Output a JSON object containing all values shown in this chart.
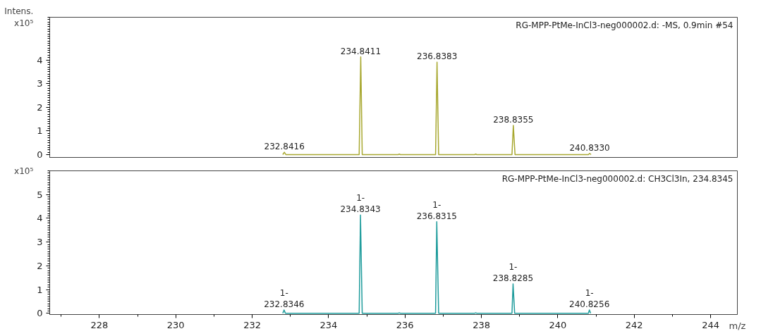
{
  "chart_data": [
    {
      "type": "line",
      "title": "RG-MPP-PtMe-InCl3-neg000002.d: -MS, 0.9min #54",
      "ylabel": "Intens. x10⁵",
      "xlim": [
        226.7,
        244.7
      ],
      "ylim": [
        -0.15,
        5.8
      ],
      "yticks": [
        0,
        1,
        2,
        3,
        4
      ],
      "xticks": [
        228,
        230,
        232,
        234,
        236,
        238,
        240,
        242,
        244
      ],
      "tick_labels": "y",
      "grid": false,
      "marker": "none",
      "line_style": "solid",
      "series": [
        {
          "color": "#a8a830",
          "x": [
            232.8,
            232.8416,
            232.88,
            234.8,
            234.8411,
            234.88,
            235.82,
            235.85,
            235.88,
            236.8,
            236.8383,
            236.88,
            237.82,
            237.85,
            237.88,
            238.8,
            238.8355,
            238.88,
            240.8,
            240.833,
            240.87
          ],
          "values": [
            0,
            0.1,
            0,
            0,
            4.13,
            0,
            0,
            0.02,
            0,
            0,
            3.9,
            0,
            0,
            0.02,
            0,
            0,
            1.23,
            0,
            0,
            0.05,
            0
          ]
        }
      ],
      "annotations": [
        {
          "text": "232.8416",
          "x": 232.8416,
          "y": 0.1
        },
        {
          "text": "234.8411",
          "x": 234.8411,
          "y": 4.13
        },
        {
          "text": "236.8383",
          "x": 236.8383,
          "y": 3.9
        },
        {
          "text": "238.8355",
          "x": 238.8355,
          "y": 1.23
        },
        {
          "text": "240.8330",
          "x": 240.833,
          "y": 0.05
        }
      ]
    },
    {
      "type": "line",
      "title": "RG-MPP-PtMe-InCl3-neg000002.d: CH3Cl3In, 234.8345",
      "ylabel": "x10⁵",
      "xlabel": "m/z",
      "xlim": [
        226.7,
        244.7
      ],
      "ylim": [
        -0.05,
        6.0
      ],
      "yticks": [
        0,
        1,
        2,
        3,
        4,
        5
      ],
      "xticks": [
        228,
        230,
        232,
        234,
        236,
        238,
        240,
        242,
        244
      ],
      "grid": false,
      "marker": "none",
      "line_style": "solid",
      "series": [
        {
          "color": "#1f9c9c",
          "x": [
            232.8,
            232.8346,
            232.87,
            234.8,
            234.8343,
            234.88,
            235.82,
            235.85,
            235.88,
            236.8,
            236.8315,
            236.88,
            237.82,
            237.85,
            237.88,
            238.8,
            238.8285,
            238.87,
            240.8,
            240.8256,
            240.86
          ],
          "values": [
            0,
            0.14,
            0,
            0,
            4.14,
            0,
            0,
            0.02,
            0,
            0,
            3.86,
            0,
            0,
            0.02,
            0,
            0,
            1.24,
            0,
            0,
            0.14,
            0
          ]
        }
      ],
      "annotations": [
        {
          "text": "1-\n232.8346",
          "x": 232.8346,
          "y": 0.14
        },
        {
          "text": "1-\n234.8343",
          "x": 234.8343,
          "y": 4.14
        },
        {
          "text": "1-\n236.8315",
          "x": 236.8315,
          "y": 3.86
        },
        {
          "text": "1-\n238.8285",
          "x": 238.8285,
          "y": 1.24
        },
        {
          "text": "1-\n240.8256",
          "x": 240.8256,
          "y": 0.14
        }
      ]
    }
  ]
}
